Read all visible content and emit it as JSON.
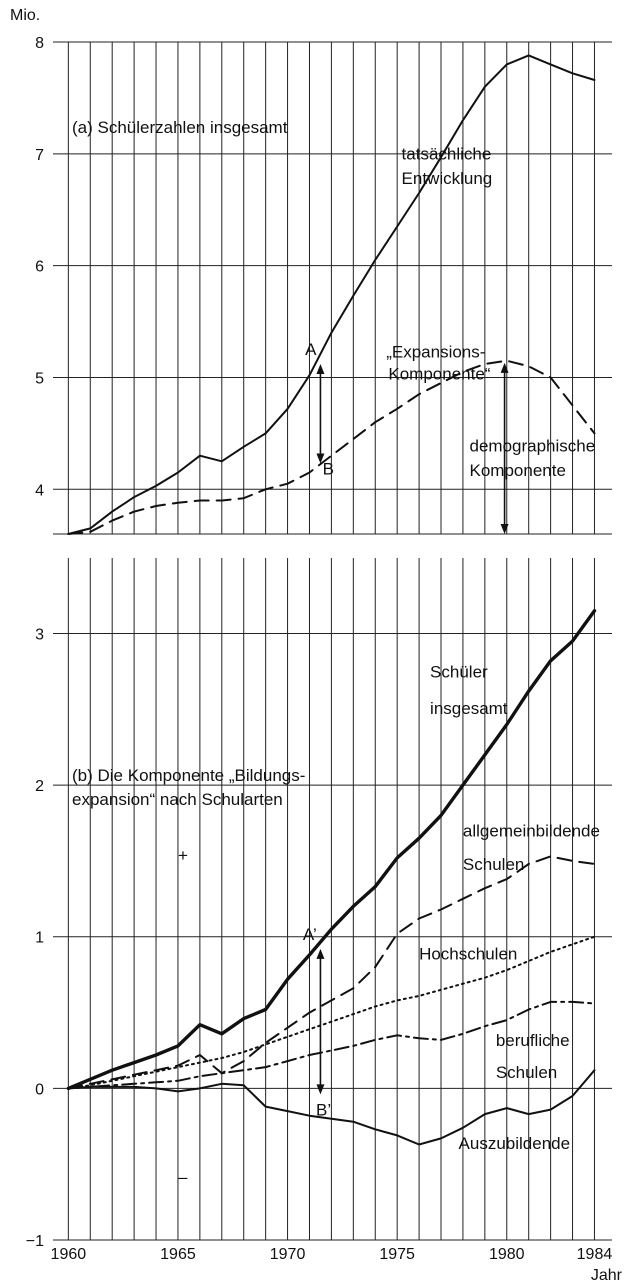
{
  "chart_data": {
    "type": "line",
    "units": {
      "top": "Mio.",
      "bottom": "Jahr"
    },
    "x_ticks": [
      "1960",
      "1965",
      "1970",
      "1975",
      "1980",
      "1984"
    ],
    "panels": [
      {
        "id": "a",
        "title": "(a) Schülerzahlen insgesamt",
        "ylim": [
          3.6,
          8
        ],
        "y_ticks": [
          4,
          5,
          6,
          7,
          8
        ],
        "y_tick_labels": [
          "4",
          "5",
          "6",
          "7",
          "8"
        ],
        "series": [
          {
            "name": "tatsächliche Entwicklung",
            "style": "solid",
            "x": [
              1960,
              1961,
              1962,
              1963,
              1964,
              1965,
              1966,
              1967,
              1968,
              1969,
              1970,
              1971,
              1972,
              1973,
              1974,
              1975,
              1976,
              1977,
              1978,
              1979,
              1980,
              1981,
              1982,
              1983,
              1984
            ],
            "y": [
              3.6,
              3.65,
              3.8,
              3.93,
              4.03,
              4.15,
              4.3,
              4.25,
              4.38,
              4.5,
              4.72,
              5.02,
              5.4,
              5.73,
              6.05,
              6.35,
              6.65,
              6.97,
              7.3,
              7.6,
              7.8,
              7.88,
              7.8,
              7.72,
              7.66
            ]
          },
          {
            "name": "demographische Komponente",
            "style": "dashed",
            "x": [
              1960,
              1961,
              1962,
              1963,
              1964,
              1965,
              1966,
              1967,
              1968,
              1969,
              1970,
              1971,
              1972,
              1973,
              1974,
              1975,
              1976,
              1977,
              1978,
              1979,
              1980,
              1981,
              1982,
              1983,
              1984
            ],
            "y": [
              3.6,
              3.62,
              3.72,
              3.8,
              3.85,
              3.88,
              3.9,
              3.9,
              3.92,
              4.0,
              4.05,
              4.15,
              4.3,
              4.45,
              4.6,
              4.72,
              4.85,
              4.95,
              5.05,
              5.12,
              5.15,
              5.1,
              5.0,
              4.75,
              4.5
            ]
          }
        ],
        "annotations": [
          {
            "text": "tatsächliche",
            "x": 1975.2,
            "y": 6.95
          },
          {
            "text": "Entwicklung",
            "x": 1975.2,
            "y": 6.73
          },
          {
            "text": "„Expansions-",
            "x": 1974.5,
            "y": 5.18
          },
          {
            "text": "Komponente“",
            "x": 1974.6,
            "y": 4.98
          },
          {
            "text": "demographische",
            "x": 1978.3,
            "y": 4.34
          },
          {
            "text": "Komponente",
            "x": 1978.3,
            "y": 4.12
          },
          {
            "text": "A",
            "x": 1970.8,
            "y": 5.2
          },
          {
            "text": "B",
            "x": 1971.6,
            "y": 4.13
          }
        ]
      },
      {
        "id": "b",
        "title": "(b) Die Komponente „Bildungs-",
        "title2": "expansion“ nach Schularten",
        "ylim": [
          -1,
          3.3
        ],
        "y_ticks": [
          -1,
          0,
          1,
          2,
          3
        ],
        "y_tick_labels": [
          "−1",
          "0",
          "1",
          "2",
          "3"
        ],
        "series": [
          {
            "name": "Schüler insgesamt",
            "style": "thick",
            "x": [
              1960,
              1961,
              1962,
              1963,
              1964,
              1965,
              1966,
              1967,
              1968,
              1969,
              1970,
              1971,
              1972,
              1973,
              1974,
              1975,
              1976,
              1977,
              1978,
              1979,
              1980,
              1981,
              1982,
              1983,
              1984
            ],
            "y": [
              0,
              0.06,
              0.12,
              0.17,
              0.22,
              0.28,
              0.42,
              0.36,
              0.46,
              0.52,
              0.72,
              0.88,
              1.05,
              1.2,
              1.33,
              1.52,
              1.65,
              1.8,
              2.0,
              2.2,
              2.4,
              2.62,
              2.82,
              2.95,
              3.15
            ]
          },
          {
            "name": "allgemeinbildende Schulen",
            "style": "dashed",
            "x": [
              1960,
              1961,
              1962,
              1963,
              1964,
              1965,
              1966,
              1967,
              1968,
              1969,
              1970,
              1971,
              1972,
              1973,
              1974,
              1975,
              1976,
              1977,
              1978,
              1979,
              1980,
              1981,
              1982,
              1983,
              1984
            ],
            "y": [
              0,
              0.03,
              0.06,
              0.09,
              0.12,
              0.15,
              0.22,
              0.1,
              0.18,
              0.3,
              0.4,
              0.5,
              0.58,
              0.66,
              0.8,
              1.02,
              1.12,
              1.18,
              1.25,
              1.32,
              1.38,
              1.48,
              1.53,
              1.5,
              1.48
            ]
          },
          {
            "name": "Hochschulen",
            "style": "dotted",
            "x": [
              1960,
              1961,
              1962,
              1963,
              1964,
              1965,
              1966,
              1967,
              1968,
              1969,
              1970,
              1971,
              1972,
              1973,
              1974,
              1975,
              1976,
              1977,
              1978,
              1979,
              1980,
              1981,
              1982,
              1983,
              1984
            ],
            "y": [
              0,
              0.02,
              0.05,
              0.08,
              0.11,
              0.14,
              0.17,
              0.2,
              0.24,
              0.29,
              0.34,
              0.39,
              0.44,
              0.49,
              0.54,
              0.58,
              0.61,
              0.65,
              0.69,
              0.73,
              0.78,
              0.84,
              0.9,
              0.95,
              1.0
            ]
          },
          {
            "name": "berufliche Schulen",
            "style": "dashdot",
            "x": [
              1960,
              1961,
              1962,
              1963,
              1964,
              1965,
              1966,
              1967,
              1968,
              1969,
              1970,
              1971,
              1972,
              1973,
              1974,
              1975,
              1976,
              1977,
              1978,
              1979,
              1980,
              1981,
              1982,
              1983,
              1984
            ],
            "y": [
              0,
              0.01,
              0.02,
              0.03,
              0.04,
              0.05,
              0.08,
              0.1,
              0.12,
              0.14,
              0.18,
              0.22,
              0.25,
              0.28,
              0.32,
              0.35,
              0.33,
              0.32,
              0.36,
              0.41,
              0.45,
              0.52,
              0.57,
              0.57,
              0.56
            ]
          },
          {
            "name": "Auszubildende",
            "style": "solid",
            "x": [
              1960,
              1961,
              1962,
              1963,
              1964,
              1965,
              1966,
              1967,
              1968,
              1969,
              1970,
              1971,
              1972,
              1973,
              1974,
              1975,
              1976,
              1977,
              1978,
              1979,
              1980,
              1981,
              1982,
              1983,
              1984
            ],
            "y": [
              0,
              0.01,
              0.01,
              0.01,
              0.0,
              -0.02,
              0.0,
              0.03,
              0.02,
              -0.12,
              -0.15,
              -0.18,
              -0.2,
              -0.22,
              -0.27,
              -0.31,
              -0.37,
              -0.33,
              -0.26,
              -0.17,
              -0.13,
              -0.17,
              -0.14,
              -0.05,
              0.12
            ]
          }
        ],
        "annotations": [
          {
            "text": "Schüler",
            "x": 1976.5,
            "y": 2.71
          },
          {
            "text": "insgesamt",
            "x": 1976.5,
            "y": 2.47
          },
          {
            "text": "allgemeinbildende",
            "x": 1978.0,
            "y": 1.66
          },
          {
            "text": "Schulen",
            "x": 1978.0,
            "y": 1.44
          },
          {
            "text": "Hochschulen",
            "x": 1976.0,
            "y": 0.85
          },
          {
            "text": "berufliche",
            "x": 1979.5,
            "y": 0.28
          },
          {
            "text": "Schulen",
            "x": 1979.5,
            "y": 0.07
          },
          {
            "text": "Auszubildende",
            "x": 1977.8,
            "y": -0.4
          },
          {
            "text": "A’",
            "x": 1970.7,
            "y": 0.98
          },
          {
            "text": "B’",
            "x": 1971.3,
            "y": -0.18
          },
          {
            "text": "+",
            "x": 1965.0,
            "y": 1.5
          },
          {
            "text": "–",
            "x": 1965.0,
            "y": -0.62
          }
        ]
      }
    ]
  }
}
